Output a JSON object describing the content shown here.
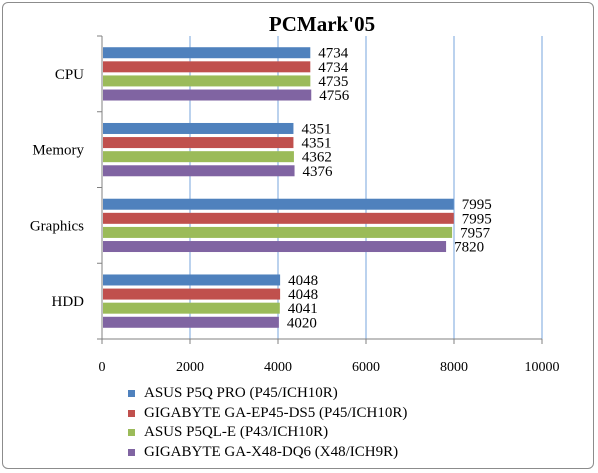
{
  "chart_data": {
    "type": "bar",
    "orientation": "horizontal",
    "title": "PCMark'05",
    "categories": [
      "CPU",
      "Memory",
      "Graphics",
      "HDD"
    ],
    "series": [
      {
        "name": "ASUS P5Q PRO (P45/ICH10R)",
        "color": "#4f81bd",
        "values": [
          4734,
          4351,
          7995,
          4048
        ]
      },
      {
        "name": "GIGABYTE GA-EP45-DS5 (P45/ICH10R)",
        "color": "#c0504d",
        "values": [
          4734,
          4351,
          7995,
          4048
        ]
      },
      {
        "name": "ASUS P5QL-E (P43/ICH10R)",
        "color": "#9bbb59",
        "values": [
          4735,
          4362,
          7957,
          4041
        ]
      },
      {
        "name": "GIGABYTE GA-X48-DQ6 (X48/ICH9R)",
        "color": "#8064a2",
        "values": [
          4756,
          4376,
          7820,
          4020
        ]
      }
    ],
    "xlim": [
      0,
      10000
    ],
    "x_ticks": [
      "0",
      "2000",
      "4000",
      "6000",
      "8000",
      "10000"
    ],
    "grid": true,
    "legend_position": "bottom"
  }
}
